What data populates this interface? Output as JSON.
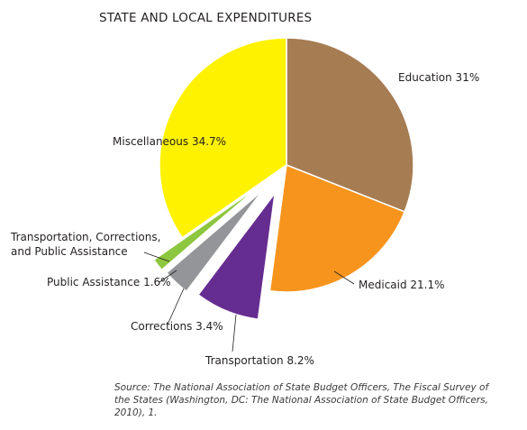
{
  "chart_data": {
    "type": "pie",
    "title": "STATE AND LOCAL EXPENDITURES",
    "slices": [
      {
        "label": "Education 31%",
        "value": 31.0,
        "color": "#a67c52"
      },
      {
        "label": "Medicaid 21.1%",
        "value": 21.1,
        "color": "#f7941d"
      },
      {
        "label": "Transportation 8.2%",
        "value": 8.2,
        "color": "#662d91",
        "exploded": true
      },
      {
        "label": "Corrections 3.4%",
        "value": 3.4,
        "color": "#939598",
        "exploded": true
      },
      {
        "label": "Public Assistance 1.6%",
        "value": 1.6,
        "color": "#8dc63f",
        "exploded": true
      },
      {
        "label": "Miscellaneous 34.7%",
        "value": 34.7,
        "color": "#fff200"
      }
    ],
    "group_label": "Transportation, Corrections, and Public Assistance",
    "group_label_lines": [
      "Transportation, Corrections,",
      "and Public Assistance"
    ]
  },
  "source": "Source: The National Association of State Budget Officers, The Fiscal Survey of the States (Washington, DC: The National Association of State Budget Officers, 2010), 1."
}
